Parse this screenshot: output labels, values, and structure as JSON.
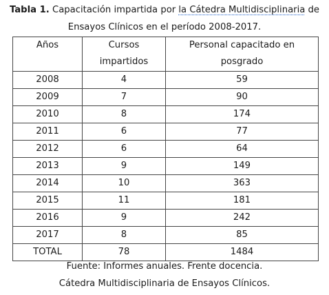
{
  "caption": {
    "label": "Tabla 1.",
    "text_before": " Capacitación impartida por ",
    "underlined": "la Cátedra Multidisciplinaria",
    "text_after": " de",
    "line2": "Ensayos Clínicos en el período 2008-2017."
  },
  "table": {
    "headers": {
      "years": "Años",
      "courses_l1": "Cursos",
      "courses_l2": "impartidos",
      "staff_l1": "Personal capacitado en",
      "staff_l2": "posgrado"
    },
    "rows": [
      {
        "year": "2008",
        "courses": "4",
        "staff": "59"
      },
      {
        "year": "2009",
        "courses": "7",
        "staff": "90"
      },
      {
        "year": "2010",
        "courses": "8",
        "staff": "174"
      },
      {
        "year": "2011",
        "courses": "6",
        "staff": "77"
      },
      {
        "year": "2012",
        "courses": "6",
        "staff": "64"
      },
      {
        "year": "2013",
        "courses": "9",
        "staff": "149"
      },
      {
        "year": "2014",
        "courses": "10",
        "staff": "363"
      },
      {
        "year": "2015",
        "courses": "11",
        "staff": "181"
      },
      {
        "year": "2016",
        "courses": "9",
        "staff": "242"
      },
      {
        "year": "2017",
        "courses": "8",
        "staff": "85"
      }
    ],
    "total": {
      "label": "TOTAL",
      "courses": "78",
      "staff": "1484"
    }
  },
  "source": {
    "line1": "Fuente: Informes anuales. Frente docencia.",
    "line2": "Cátedra Multidisciplinaria de Ensayos Clínicos."
  }
}
